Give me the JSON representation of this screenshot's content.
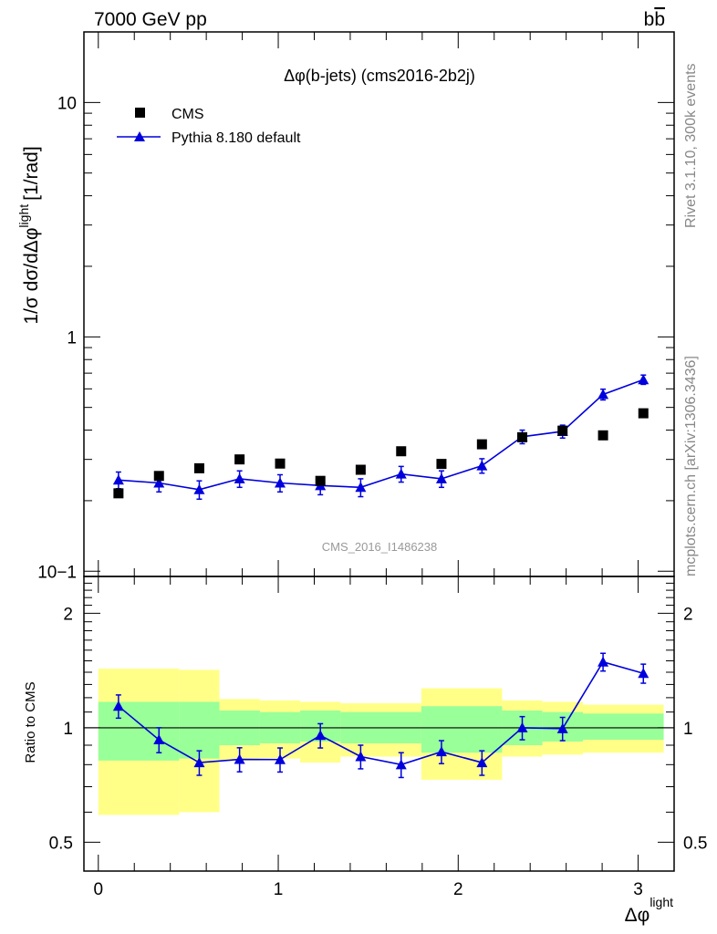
{
  "header": {
    "left": "7000 GeV pp",
    "right_main": "b",
    "right_bar": "b"
  },
  "side": {
    "rivet": "Rivet 3.1.10,  300k events",
    "url": "mcplots.cern.ch [arXiv:1306.3436]"
  },
  "colors": {
    "mc": "#0000dd",
    "data": "#000000",
    "band_inner": "#99ff99",
    "band_outer": "#ffff88"
  },
  "chart_data": [
    {
      "type": "scatter",
      "title": "Δφ(b-jets) (cms2016-2b2j)",
      "watermark": "CMS_2016_I1486238",
      "ylabel": "1/σ dσ/dΔφ",
      "ylabel_sup": "light",
      "ylabel_unit": "[1/rad]",
      "yscale": "log",
      "xlim": [
        -0.08,
        3.2
      ],
      "ylim": [
        0.095,
        20
      ],
      "yticks": [
        "10−1",
        "1",
        "10"
      ],
      "legend_position": "top-left",
      "x": [
        0.112,
        0.337,
        0.561,
        0.785,
        1.01,
        1.234,
        1.458,
        1.683,
        1.907,
        2.132,
        2.356,
        2.58,
        2.805,
        3.029
      ],
      "series": [
        {
          "name": "CMS",
          "marker": "square",
          "values": [
            0.215,
            0.255,
            0.275,
            0.3,
            0.288,
            0.243,
            0.271,
            0.325,
            0.287,
            0.348,
            0.373,
            0.398,
            0.38,
            0.472
          ]
        },
        {
          "name": "Pythia 8.180 default",
          "marker": "triangle",
          "values": [
            0.245,
            0.238,
            0.223,
            0.248,
            0.238,
            0.232,
            0.228,
            0.26,
            0.248,
            0.282,
            0.375,
            0.395,
            0.568,
            0.657
          ],
          "err_low": [
            0.02,
            0.02,
            0.02,
            0.02,
            0.02,
            0.02,
            0.02,
            0.02,
            0.02,
            0.02,
            0.025,
            0.025,
            0.03,
            0.03
          ],
          "err_high": [
            0.02,
            0.02,
            0.02,
            0.02,
            0.02,
            0.02,
            0.02,
            0.02,
            0.02,
            0.02,
            0.025,
            0.025,
            0.03,
            0.03
          ]
        }
      ]
    },
    {
      "type": "line",
      "ylabel": "Ratio to CMS",
      "xlabel": "Δφ",
      "xlabel_sup": "light",
      "yscale": "log",
      "xlim": [
        -0.08,
        3.2
      ],
      "ylim": [
        0.42,
        2.5
      ],
      "xticks": [
        "0",
        "1",
        "2",
        "3"
      ],
      "yticks": [
        "0.5",
        "1",
        "2"
      ],
      "bin_edges": [
        0,
        0.449,
        0.673,
        0.898,
        1.122,
        1.346,
        1.795,
        2.244,
        2.468,
        2.693,
        3.142
      ],
      "band_inner_low": [
        0.82,
        0.83,
        0.9,
        0.91,
        0.92,
        0.91,
        0.86,
        0.9,
        0.92,
        0.93
      ],
      "band_inner_high": [
        1.17,
        1.17,
        1.11,
        1.1,
        1.11,
        1.1,
        1.14,
        1.11,
        1.1,
        1.09
      ],
      "band_outer_low": [
        0.59,
        0.6,
        0.82,
        0.83,
        0.81,
        0.84,
        0.73,
        0.84,
        0.85,
        0.86
      ],
      "band_outer_high": [
        1.43,
        1.42,
        1.19,
        1.18,
        1.17,
        1.16,
        1.27,
        1.18,
        1.17,
        1.15
      ],
      "series": [
        {
          "name": "Pythia 8.180 default",
          "values": [
            1.14,
            0.93,
            0.81,
            0.826,
            0.825,
            0.955,
            0.84,
            0.8,
            0.865,
            0.81,
            1.0,
            0.995,
            1.49,
            1.39
          ],
          "err_low": [
            0.08,
            0.07,
            0.06,
            0.06,
            0.06,
            0.07,
            0.06,
            0.06,
            0.06,
            0.06,
            0.07,
            0.07,
            0.08,
            0.08
          ],
          "err_high": [
            0.08,
            0.07,
            0.06,
            0.06,
            0.06,
            0.07,
            0.06,
            0.06,
            0.06,
            0.06,
            0.07,
            0.07,
            0.08,
            0.08
          ]
        }
      ],
      "reference": 1
    }
  ]
}
